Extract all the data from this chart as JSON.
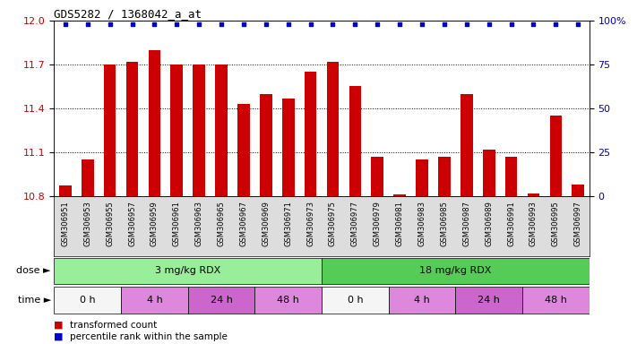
{
  "title": "GDS5282 / 1368042_a_at",
  "samples": [
    "GSM306951",
    "GSM306953",
    "GSM306955",
    "GSM306957",
    "GSM306959",
    "GSM306961",
    "GSM306963",
    "GSM306965",
    "GSM306967",
    "GSM306969",
    "GSM306971",
    "GSM306973",
    "GSM306975",
    "GSM306977",
    "GSM306979",
    "GSM306981",
    "GSM306983",
    "GSM306985",
    "GSM306987",
    "GSM306989",
    "GSM306991",
    "GSM306993",
    "GSM306995",
    "GSM306997"
  ],
  "bar_values": [
    10.87,
    11.05,
    11.7,
    11.72,
    11.8,
    11.7,
    11.7,
    11.7,
    11.43,
    11.5,
    11.47,
    11.65,
    11.72,
    11.55,
    11.07,
    10.81,
    11.05,
    11.07,
    11.5,
    11.12,
    11.07,
    10.82,
    11.35,
    10.88
  ],
  "percentile_values": [
    100,
    100,
    100,
    100,
    100,
    100,
    100,
    100,
    100,
    100,
    100,
    100,
    100,
    100,
    100,
    100,
    100,
    100,
    100,
    100,
    100,
    100,
    100,
    100
  ],
  "bar_color": "#cc0000",
  "dot_color": "#0000cc",
  "ylim_left": [
    10.8,
    12.0
  ],
  "ylim_right": [
    0,
    100
  ],
  "yticks_left": [
    10.8,
    11.1,
    11.4,
    11.7,
    12.0
  ],
  "yticks_right": [
    0,
    25,
    50,
    75,
    100
  ],
  "ylabel_left_color": "#cc0000",
  "ylabel_right_color": "#0000cc",
  "dose_groups": [
    {
      "label": "3 mg/kg RDX",
      "start": 0,
      "end": 12,
      "color": "#99ee99"
    },
    {
      "label": "18 mg/kg RDX",
      "start": 12,
      "end": 24,
      "color": "#55cc55"
    }
  ],
  "time_groups": [
    {
      "label": "0 h",
      "start": 0,
      "end": 3,
      "color": "#f5f5f5"
    },
    {
      "label": "4 h",
      "start": 3,
      "end": 6,
      "color": "#dd88dd"
    },
    {
      "label": "24 h",
      "start": 6,
      "end": 9,
      "color": "#cc66cc"
    },
    {
      "label": "48 h",
      "start": 9,
      "end": 12,
      "color": "#dd88dd"
    },
    {
      "label": "0 h",
      "start": 12,
      "end": 15,
      "color": "#f5f5f5"
    },
    {
      "label": "4 h",
      "start": 15,
      "end": 18,
      "color": "#dd88dd"
    },
    {
      "label": "24 h",
      "start": 18,
      "end": 21,
      "color": "#cc66cc"
    },
    {
      "label": "48 h",
      "start": 21,
      "end": 24,
      "color": "#dd88dd"
    }
  ],
  "legend_items": [
    {
      "color": "#cc0000",
      "label": "transformed count"
    },
    {
      "color": "#0000cc",
      "label": "percentile rank within the sample"
    }
  ],
  "dose_label": "dose",
  "time_label": "time"
}
